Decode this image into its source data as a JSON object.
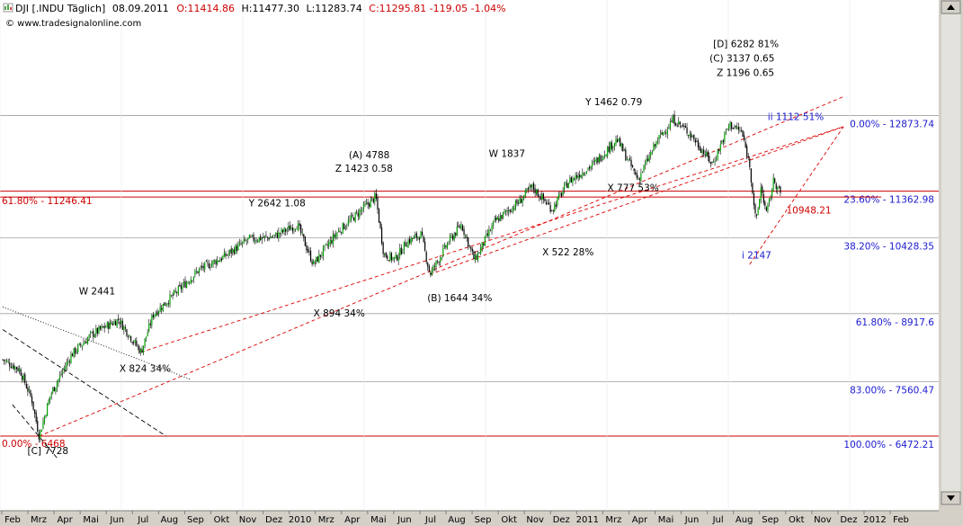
{
  "header": {
    "symbol_box": "DJI [.INDU Täglich]",
    "date": "08.09.2011",
    "open": "O:11414.86",
    "high": "H:11477.30",
    "low": "L:11283.74",
    "close": "C:11295.81 -119.05 -1.04%",
    "watermark": "© www.tradesignalonline.com"
  },
  "colors": {
    "background": "#ffffff",
    "frame": "#d4d0c8",
    "up_candle": "#00a000",
    "down_candle": "#000000",
    "fib_line": "#cc0000",
    "fib_grid": "#a0a0a0",
    "fib_label": "#1a1ad0",
    "trendline": "#dd0000"
  },
  "icons": [
    "chart-icon",
    "scroll-up-icon",
    "scroll-down-icon"
  ],
  "chart_data": {
    "type": "candlestick",
    "x_ticks": [
      "Feb",
      "Mrz",
      "Apr",
      "Mai",
      "Jun",
      "Jul",
      "Aug",
      "Sep",
      "Okt",
      "Nov",
      "Dez",
      "2010",
      "Mrz",
      "Apr",
      "Mai",
      "Jun",
      "Jul",
      "Aug",
      "Sep",
      "Okt",
      "Nov",
      "Dez",
      "2011",
      "Mrz",
      "Apr",
      "Mai",
      "Jun",
      "Jul",
      "Aug",
      "Sep",
      "Okt",
      "Nov",
      "Dez",
      "2012",
      "Feb"
    ],
    "ylim": [
      6000,
      13800
    ],
    "series_anchors": [
      [
        "2009-01-20",
        8000
      ],
      [
        "2009-02-10",
        7800
      ],
      [
        "2009-02-25",
        7200
      ],
      [
        "2009-03-06",
        6470
      ],
      [
        "2009-03-20",
        7300
      ],
      [
        "2009-04-15",
        8100
      ],
      [
        "2009-05-10",
        8500
      ],
      [
        "2009-06-12",
        8800
      ],
      [
        "2009-07-10",
        8150
      ],
      [
        "2009-07-25",
        8900
      ],
      [
        "2009-08-20",
        9300
      ],
      [
        "2009-09-20",
        9800
      ],
      [
        "2009-10-20",
        10050
      ],
      [
        "2009-11-20",
        10400
      ],
      [
        "2009-12-20",
        10450
      ],
      [
        "2010-01-19",
        10700
      ],
      [
        "2010-02-08",
        9900
      ],
      [
        "2010-03-10",
        10550
      ],
      [
        "2010-04-26",
        11250
      ],
      [
        "2010-05-06",
        10100
      ],
      [
        "2010-05-20",
        10000
      ],
      [
        "2010-06-03",
        10350
      ],
      [
        "2010-06-21",
        10500
      ],
      [
        "2010-07-02",
        9700
      ],
      [
        "2010-07-25",
        10350
      ],
      [
        "2010-08-10",
        10700
      ],
      [
        "2010-08-26",
        9980
      ],
      [
        "2010-09-20",
        10750
      ],
      [
        "2010-10-20",
        11150
      ],
      [
        "2010-11-05",
        11450
      ],
      [
        "2010-11-30",
        11000
      ],
      [
        "2010-12-20",
        11550
      ],
      [
        "2011-01-20",
        11900
      ],
      [
        "2011-02-18",
        12400
      ],
      [
        "2011-03-16",
        11600
      ],
      [
        "2011-04-10",
        12400
      ],
      [
        "2011-04-29",
        12800
      ],
      [
        "2011-05-20",
        12500
      ],
      [
        "2011-06-16",
        11900
      ],
      [
        "2011-07-07",
        12700
      ],
      [
        "2011-07-22",
        12550
      ],
      [
        "2011-08-01",
        11900
      ],
      [
        "2011-08-09",
        10700
      ],
      [
        "2011-08-15",
        11450
      ],
      [
        "2011-08-22",
        10900
      ],
      [
        "2011-08-31",
        11600
      ],
      [
        "2011-09-08",
        11296
      ]
    ],
    "fib_levels": [
      {
        "label": "0.00% - 12873.74",
        "value": 12873.74,
        "color": "blue",
        "line": "grid"
      },
      {
        "label": "23.60% - 11362.98",
        "value": 11362.98,
        "color": "blue",
        "line": "red"
      },
      {
        "label": "38.20% - 10428.35",
        "value": 10428.35,
        "color": "blue",
        "line": "grid"
      },
      {
        "label": "61.80% - 8917.6",
        "value": 8917.6,
        "color": "blue",
        "line": "grid"
      },
      {
        "label": "83.00% - 7560.47",
        "value": 7560.47,
        "color": "blue",
        "line": "grid"
      },
      {
        "label": "100.00% - 6472.21",
        "value": 6472.21,
        "color": "blue",
        "line": "red"
      }
    ],
    "left_levels": [
      {
        "label": "61.80% - 11246.41",
        "value": 11246.41
      },
      {
        "label": "0.00% - 6468",
        "value": 6468
      }
    ],
    "price_label": {
      "label": "10948.21",
      "date": "2011-09-02",
      "value": 10948.21
    },
    "wave_labels": [
      {
        "text": "W 2441",
        "date": "2009-06-12",
        "value": 8800
      },
      {
        "text": "X 824 34%",
        "date": "2009-07-10",
        "value": 8150
      },
      {
        "text": "Y 2642 1.08",
        "date": "2010-01-19",
        "value": 10700
      },
      {
        "text": "X 894 34%",
        "date": "2010-02-08",
        "value": 9900
      },
      {
        "text": "(A) 4788",
        "date": "2010-04-26",
        "value": 11250
      },
      {
        "text": "Z 1423  0.58",
        "date": "2010-04-26",
        "value": 11250
      },
      {
        "text": "(B) 1644 34%",
        "date": "2010-07-02",
        "value": 9700
      },
      {
        "text": "W 1837",
        "date": "2010-11-05",
        "value": 11450
      },
      {
        "text": "X 522 28%",
        "date": "2010-11-30",
        "value": 11000
      },
      {
        "text": "Y 1462 0.79",
        "date": "2011-02-18",
        "value": 12400
      },
      {
        "text": "X 777 53%",
        "date": "2011-03-16",
        "value": 11600
      },
      {
        "text": "[D] 6282 81%",
        "date": "2011-04-29",
        "value": 12800
      },
      {
        "text": "(C) 3137 0.65",
        "date": "2011-04-29",
        "value": 12800
      },
      {
        "text": "Z 1196 0.65",
        "date": "2011-04-29",
        "value": 12800
      },
      {
        "text": "ii 1112 51%",
        "date": "2011-08-31",
        "value": 11600
      },
      {
        "text": "i 2147",
        "date": "2011-08-09",
        "value": 10700
      },
      {
        "text": "[C] 7728",
        "date": "2009-03-06",
        "value": 6470
      }
    ],
    "trendlines": [
      {
        "from": [
          "2009-03-06",
          6470
        ],
        "to": [
          "2011-11-25",
          13250
        ]
      },
      {
        "from": [
          "2009-07-10",
          8150
        ],
        "to": [
          "2011-11-25",
          12650
        ]
      },
      {
        "from": [
          "2010-07-02",
          9700
        ],
        "to": [
          "2011-11-25",
          12650
        ]
      },
      {
        "from": [
          "2011-08-01",
          9900
        ],
        "to": [
          "2011-11-25",
          12650
        ]
      }
    ],
    "channel_lines": [
      {
        "style": "dotted",
        "from": [
          "2009-01-20",
          9050
        ],
        "to": [
          "2009-09-10",
          7600
        ]
      },
      {
        "style": "dashed",
        "from": [
          "2009-01-20",
          8600
        ],
        "to": [
          "2009-08-10",
          6470
        ]
      },
      {
        "style": "dashed",
        "from": [
          "2009-02-01",
          7100
        ],
        "to": [
          "2009-03-30",
          6000
        ]
      }
    ]
  }
}
